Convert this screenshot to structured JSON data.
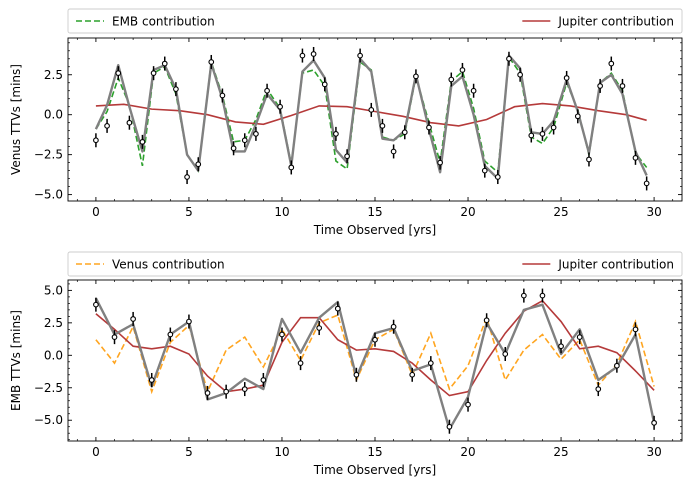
{
  "chart_data": [
    {
      "type": "line",
      "xlabel": "Time Observed [yrs]",
      "ylabel": "Venus TTVs [mins]",
      "xlim": [
        -1.5,
        31.5
      ],
      "ylim": [
        -5.4,
        4.8
      ],
      "xticks": [
        0,
        5,
        10,
        15,
        20,
        25,
        30
      ],
      "yticks": [
        -5.0,
        -2.5,
        0.0,
        2.5
      ],
      "xtick_labels": [
        "0",
        "5",
        "10",
        "15",
        "20",
        "25",
        "30"
      ],
      "ytick_labels": [
        "−5.0",
        "−2.5",
        "0.0",
        "2.5"
      ],
      "legend": {
        "placement": "top, outside",
        "entries": [
          "EMB contribution",
          "Jupiter contribution"
        ]
      },
      "colors": {
        "contribution": "#2ca02c",
        "jupiter": "#b53a3a",
        "total": "#808080",
        "points": "#000000"
      },
      "series": [
        {
          "name": "EMB contribution",
          "style": "dashed",
          "x": [
            0,
            0.6,
            1.2,
            1.8,
            2.5,
            3.1,
            3.7,
            4.3,
            4.9,
            5.5,
            6.2,
            6.8,
            7.4,
            8.0,
            8.6,
            9.2,
            9.9,
            10.5,
            11.1,
            11.7,
            12.3,
            12.9,
            13.5,
            14.2,
            14.8,
            15.4,
            16.0,
            16.6,
            17.2,
            17.9,
            18.5,
            19.1,
            19.7,
            20.3,
            20.9,
            21.6,
            22.2,
            22.8,
            23.4,
            24.0,
            24.6,
            25.3,
            25.9,
            26.5,
            27.1,
            27.7,
            28.3,
            29.0,
            29.6
          ],
          "y": [
            -0.9,
            0.2,
            2.3,
            0.6,
            -3.2,
            2.6,
            3.0,
            1.3,
            -2.5,
            -3.5,
            3.3,
            1.2,
            -1.7,
            -1.6,
            -0.3,
            1.6,
            0.4,
            -3.1,
            2.6,
            2.8,
            1.8,
            -2.9,
            -3.4,
            3.3,
            2.8,
            -1.4,
            -1.6,
            -1.2,
            2.4,
            -0.5,
            -3.0,
            2.1,
            2.7,
            0.4,
            -2.9,
            -3.6,
            3.6,
            2.6,
            -1.4,
            -1.8,
            -0.8,
            2.0,
            0.3,
            -2.5,
            2.0,
            2.6,
            1.5,
            -2.4,
            -3.3
          ]
        },
        {
          "name": "Jupiter contribution",
          "style": "solid",
          "x": [
            0,
            1.5,
            3.0,
            4.5,
            6.0,
            7.5,
            9.0,
            10.5,
            12.0,
            13.5,
            15.0,
            16.5,
            18.0,
            19.5,
            21.0,
            22.5,
            24.0,
            25.5,
            27.0,
            28.5,
            29.6
          ],
          "y": [
            0.55,
            0.65,
            0.35,
            0.25,
            0.0,
            -0.45,
            -0.6,
            -0.05,
            0.55,
            0.5,
            0.2,
            -0.1,
            -0.5,
            -0.7,
            -0.3,
            0.5,
            0.7,
            0.55,
            0.25,
            0.0,
            -0.35
          ]
        },
        {
          "style": "solid",
          "role": "total",
          "x": [
            0,
            0.6,
            1.2,
            1.8,
            2.5,
            3.1,
            3.7,
            4.3,
            4.9,
            5.5,
            6.2,
            6.8,
            7.4,
            8.0,
            8.6,
            9.2,
            9.9,
            10.5,
            11.1,
            11.7,
            12.3,
            12.9,
            13.5,
            14.2,
            14.8,
            15.4,
            16.0,
            16.6,
            17.2,
            17.9,
            18.5,
            19.1,
            19.7,
            20.3,
            20.9,
            21.6,
            22.2,
            22.8,
            23.4,
            24.0,
            24.6,
            25.3,
            25.9,
            26.5,
            27.1,
            27.7,
            28.3,
            29.0,
            29.6
          ],
          "y": [
            -0.9,
            0.6,
            3.1,
            0.5,
            -2.3,
            2.8,
            3.1,
            1.6,
            -2.5,
            -3.5,
            3.2,
            1.0,
            -2.3,
            -2.3,
            -0.6,
            1.3,
            0.3,
            -3.2,
            2.7,
            3.4,
            2.3,
            -2.2,
            -3.0,
            3.5,
            2.7,
            -1.5,
            -1.6,
            -1.0,
            2.5,
            -0.9,
            -3.6,
            1.8,
            2.4,
            0.0,
            -3.2,
            -4.0,
            3.7,
            2.9,
            -1.1,
            -1.2,
            -0.4,
            2.2,
            0.2,
            -2.4,
            2.0,
            2.5,
            1.3,
            -2.3,
            -3.8
          ]
        },
        {
          "type": "scatter",
          "role": "observations",
          "x": [
            0,
            0.6,
            1.2,
            1.8,
            2.5,
            3.1,
            3.7,
            4.3,
            4.9,
            5.5,
            6.2,
            6.8,
            7.4,
            8.0,
            8.6,
            9.2,
            9.9,
            10.5,
            11.1,
            11.7,
            12.3,
            12.9,
            13.5,
            14.2,
            14.8,
            15.4,
            16.0,
            16.6,
            17.2,
            17.9,
            18.5,
            19.1,
            19.7,
            20.3,
            20.9,
            21.6,
            22.2,
            22.8,
            23.4,
            24.0,
            24.6,
            25.3,
            25.9,
            26.5,
            27.1,
            27.7,
            28.3,
            29.0,
            29.6
          ],
          "y": [
            -1.6,
            -0.7,
            2.6,
            -0.5,
            -1.7,
            2.6,
            3.2,
            1.6,
            -3.9,
            -3.1,
            3.3,
            1.2,
            -2.1,
            -1.6,
            -1.2,
            1.5,
            0.5,
            -3.3,
            3.7,
            3.8,
            1.9,
            -1.2,
            -2.6,
            3.7,
            0.3,
            -0.7,
            -2.3,
            -1.1,
            2.4,
            -0.8,
            -3.0,
            2.2,
            2.8,
            1.5,
            -3.5,
            -3.9,
            3.5,
            2.5,
            -1.3,
            -1.2,
            -0.8,
            2.3,
            -0.1,
            -2.8,
            1.8,
            3.2,
            1.8,
            -2.7,
            -4.3
          ]
        }
      ]
    },
    {
      "type": "line",
      "xlabel": "Time Observed [yrs]",
      "ylabel": "EMB TTVs [mins]",
      "xlim": [
        -1.5,
        31.5
      ],
      "ylim": [
        -6.6,
        5.8
      ],
      "xticks": [
        0,
        5,
        10,
        15,
        20,
        25,
        30
      ],
      "yticks": [
        -5.0,
        -2.5,
        0.0,
        2.5,
        5.0
      ],
      "xtick_labels": [
        "0",
        "5",
        "10",
        "15",
        "20",
        "25",
        "30"
      ],
      "ytick_labels": [
        "−5.0",
        "−2.5",
        "0.0",
        "2.5",
        "5.0"
      ],
      "legend": {
        "placement": "top, outside",
        "entries": [
          "Venus contribution",
          "Jupiter contribution"
        ]
      },
      "colors": {
        "contribution": "#ffa520",
        "jupiter": "#b53a3a",
        "total": "#808080",
        "points": "#000000"
      },
      "series": [
        {
          "name": "Venus contribution",
          "style": "dashed",
          "x": [
            0,
            1,
            2,
            3,
            4,
            5,
            6,
            7,
            8,
            9,
            10,
            11,
            12,
            13,
            14,
            15,
            16,
            17,
            18,
            19,
            20,
            21,
            22,
            23,
            24,
            25,
            26,
            27,
            28,
            29,
            30
          ],
          "y": [
            1.2,
            -0.6,
            2.2,
            -2.8,
            1.0,
            2.3,
            -2.8,
            0.4,
            1.4,
            -0.9,
            2.0,
            -0.4,
            2.5,
            3.1,
            -1.9,
            1.2,
            2.0,
            -1.5,
            1.7,
            -2.6,
            -0.8,
            2.9,
            -1.9,
            0.4,
            1.6,
            -0.3,
            1.2,
            -2.3,
            -0.7,
            2.6,
            -2.4
          ]
        },
        {
          "name": "Jupiter contribution",
          "style": "solid",
          "x": [
            0,
            1,
            2,
            3,
            4,
            5,
            6,
            7,
            8,
            9,
            10,
            11,
            12,
            13,
            14,
            15,
            16,
            17,
            18,
            19,
            20,
            21,
            22,
            23,
            24,
            25,
            26,
            27,
            28,
            29,
            30
          ],
          "y": [
            3.2,
            2.0,
            0.7,
            0.5,
            0.7,
            0.1,
            -1.6,
            -2.8,
            -2.6,
            -2.3,
            1.0,
            2.9,
            2.9,
            1.2,
            0.4,
            0.5,
            0.3,
            -0.6,
            -1.9,
            -3.1,
            -2.8,
            -0.4,
            1.7,
            3.4,
            4.2,
            2.6,
            0.5,
            0.7,
            0.2,
            -1.2,
            -2.7
          ]
        },
        {
          "style": "solid",
          "role": "total",
          "x": [
            0,
            1,
            2,
            3,
            4,
            5,
            6,
            7,
            8,
            9,
            10,
            11,
            12,
            13,
            14,
            15,
            16,
            17,
            18,
            19,
            20,
            21,
            22,
            23,
            24,
            25,
            26,
            27,
            28,
            29,
            30
          ],
          "y": [
            4.4,
            1.6,
            2.4,
            -2.4,
            1.6,
            2.6,
            -3.4,
            -2.9,
            -1.8,
            -2.6,
            2.8,
            0.2,
            2.9,
            4.1,
            -1.7,
            1.7,
            2.1,
            -1.2,
            -0.7,
            -5.7,
            -3.2,
            2.5,
            0.1,
            3.5,
            3.9,
            0.1,
            2.0,
            -1.9,
            -0.9,
            1.6,
            -5.2
          ]
        },
        {
          "type": "scatter",
          "role": "observations",
          "x": [
            0,
            1,
            2,
            3,
            4,
            5,
            6,
            7,
            8,
            9,
            10,
            11,
            12,
            13,
            14,
            15,
            16,
            17,
            18,
            19,
            20,
            21,
            22,
            23,
            24,
            25,
            26,
            27,
            28,
            29,
            30
          ],
          "y": [
            3.9,
            1.4,
            2.8,
            -1.9,
            1.6,
            2.6,
            -2.9,
            -2.8,
            -2.6,
            -1.9,
            1.6,
            -0.6,
            2.1,
            3.6,
            -1.5,
            1.2,
            2.2,
            -1.5,
            -0.6,
            -5.5,
            -3.8,
            2.7,
            0.1,
            4.6,
            4.6,
            0.7,
            1.4,
            -2.6,
            -0.8,
            2.0,
            -5.2
          ]
        }
      ]
    }
  ]
}
